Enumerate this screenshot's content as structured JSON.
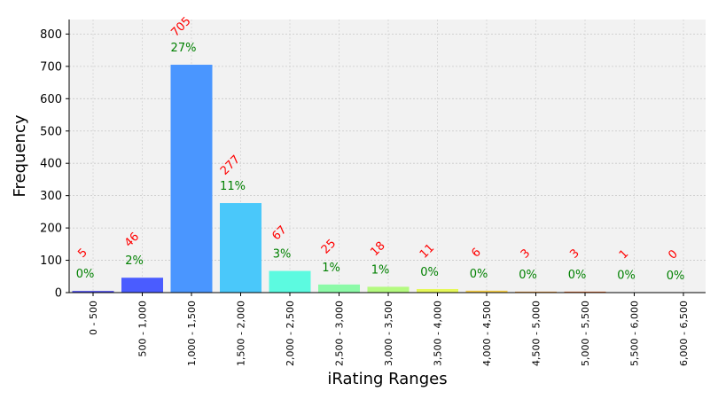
{
  "chart_data": {
    "type": "bar",
    "xlabel": "iRating Ranges",
    "ylabel": "Frequency",
    "ylim": [
      0,
      845
    ],
    "yticks": [
      0,
      100,
      200,
      300,
      400,
      500,
      600,
      700,
      800
    ],
    "grid": true,
    "categories": [
      "0 - 500",
      "500 - 1,000",
      "1,000 - 1,500",
      "1,500 - 2,000",
      "2,000 - 2,500",
      "2,500 - 3,000",
      "3,000 - 3,500",
      "3,500 - 4,000",
      "4,000 - 4,500",
      "4,500 - 5,000",
      "5,000 - 5,500",
      "5,500 - 6,000",
      "6,000 - 6,500"
    ],
    "values": [
      5,
      46,
      705,
      277,
      67,
      25,
      18,
      11,
      6,
      3,
      3,
      1,
      0
    ],
    "count_labels": [
      "5",
      "46",
      "705",
      "277",
      "67",
      "25",
      "18",
      "11",
      "6",
      "3",
      "3",
      "1",
      "0"
    ],
    "percent_labels": [
      "0%",
      "2%",
      "27%",
      "11%",
      "3%",
      "1%",
      "1%",
      "0%",
      "0%",
      "0%",
      "0%",
      "0%",
      "0%"
    ],
    "bar_colors": [
      "#4545e8",
      "#4a5cff",
      "#4a96ff",
      "#4ac8fa",
      "#5cfae0",
      "#8cfaa8",
      "#b4fa80",
      "#e6f85a",
      "#f8d048",
      "#f8a040",
      "#f07030",
      "#e84020",
      "#d82010"
    ],
    "count_label_color": "#ff0000",
    "percent_label_color": "#008000",
    "plot_background": "#f2f2f2"
  }
}
